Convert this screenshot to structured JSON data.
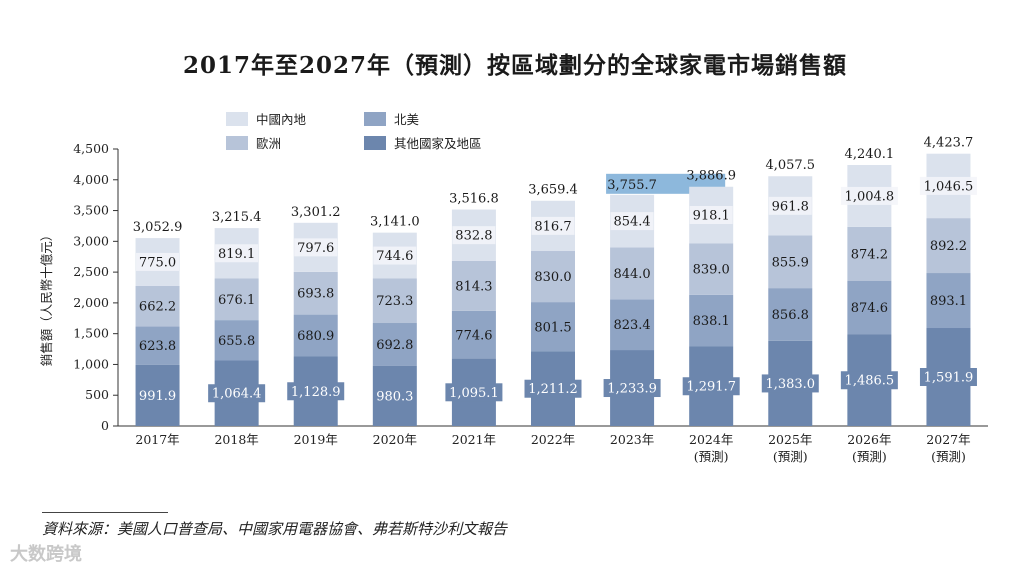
{
  "chart_data": {
    "type": "bar",
    "stacked": true,
    "title": "2017年至2027年（預測）按區域劃分的全球家電市場銷售額",
    "ylabel": "銷售額（人民幣十億元）",
    "xlabel": "",
    "ylim": [
      0,
      4500
    ],
    "yticks": [
      0,
      500,
      1000,
      1500,
      2000,
      2500,
      3000,
      3500,
      4000,
      4500
    ],
    "ytick_labels": [
      "0",
      "500",
      "1,000",
      "1,500",
      "2,000",
      "2,500",
      "3,000",
      "3,500",
      "4,000",
      "4,500"
    ],
    "categories": [
      "2017年",
      "2018年",
      "2019年",
      "2020年",
      "2021年",
      "2022年",
      "2023年",
      "2024年",
      "2025年",
      "2026年",
      "2027年"
    ],
    "category_notes": [
      "",
      "",
      "",
      "",
      "",
      "",
      "",
      "(預測)",
      "(預測)",
      "(預測)",
      "(預測)"
    ],
    "series": [
      {
        "name": "其他國家及地區",
        "color": "#6c86ad",
        "values": [
          991.9,
          1064.4,
          1128.9,
          980.3,
          1095.1,
          1211.2,
          1233.9,
          1291.7,
          1383.0,
          1486.5,
          1591.9
        ],
        "labels": [
          "991.9",
          "1,064.4",
          "1,128.9",
          "980.3",
          "1,095.1",
          "1,211.2",
          "1,233.9",
          "1,291.7",
          "1,383.0",
          "1,486.5",
          "1,591.9"
        ]
      },
      {
        "name": "北美",
        "color": "#8fa4c4",
        "values": [
          623.8,
          655.8,
          680.9,
          692.8,
          774.6,
          801.5,
          823.4,
          838.1,
          856.8,
          874.6,
          893.1
        ],
        "labels": [
          "623.8",
          "655.8",
          "680.9",
          "692.8",
          "774.6",
          "801.5",
          "823.4",
          "838.1",
          "856.8",
          "874.6",
          "893.1"
        ]
      },
      {
        "name": "歐洲",
        "color": "#b7c4d9",
        "values": [
          662.2,
          676.1,
          693.8,
          723.3,
          814.3,
          830.0,
          844.0,
          839.0,
          855.9,
          874.2,
          892.2
        ],
        "labels": [
          "662.2",
          "676.1",
          "693.8",
          "723.3",
          "814.3",
          "830.0",
          "844.0",
          "839.0",
          "855.9",
          "874.2",
          "892.2"
        ]
      },
      {
        "name": "中國內地",
        "color": "#dbe2ed",
        "values": [
          775.0,
          819.1,
          797.6,
          744.6,
          832.8,
          816.7,
          854.4,
          918.1,
          961.8,
          1004.8,
          1046.5
        ],
        "labels": [
          "775.0",
          "819.1",
          "797.6",
          "744.6",
          "832.8",
          "816.7",
          "854.4",
          "918.1",
          "961.8",
          "1,004.8",
          "1,046.5"
        ]
      }
    ],
    "totals": [
      3052.9,
      3215.4,
      3301.2,
      3141.0,
      3516.8,
      3659.4,
      3755.7,
      3886.9,
      4057.5,
      4240.1,
      4423.7
    ],
    "total_labels": [
      "3,052.9",
      "3,215.4",
      "3,301.2",
      "3,141.0",
      "3,516.8",
      "3,659.4",
      "3,755.7",
      "3,886.9",
      "4,057.5",
      "4,240.1",
      "4,423.7"
    ],
    "legend": [
      "中國內地",
      "北美",
      "歐洲",
      "其他國家及地區"
    ],
    "legend_colors": [
      "#dbe2ed",
      "#8fa4c4",
      "#b7c4d9",
      "#6c86ad"
    ],
    "legend_position": "top-left",
    "highlight_color": "#8db8dc",
    "grid": false
  },
  "source_note": "資料來源：美國人口普查局、中國家用電器協會、弗若斯特沙利文報告",
  "watermark": "大数跨境"
}
